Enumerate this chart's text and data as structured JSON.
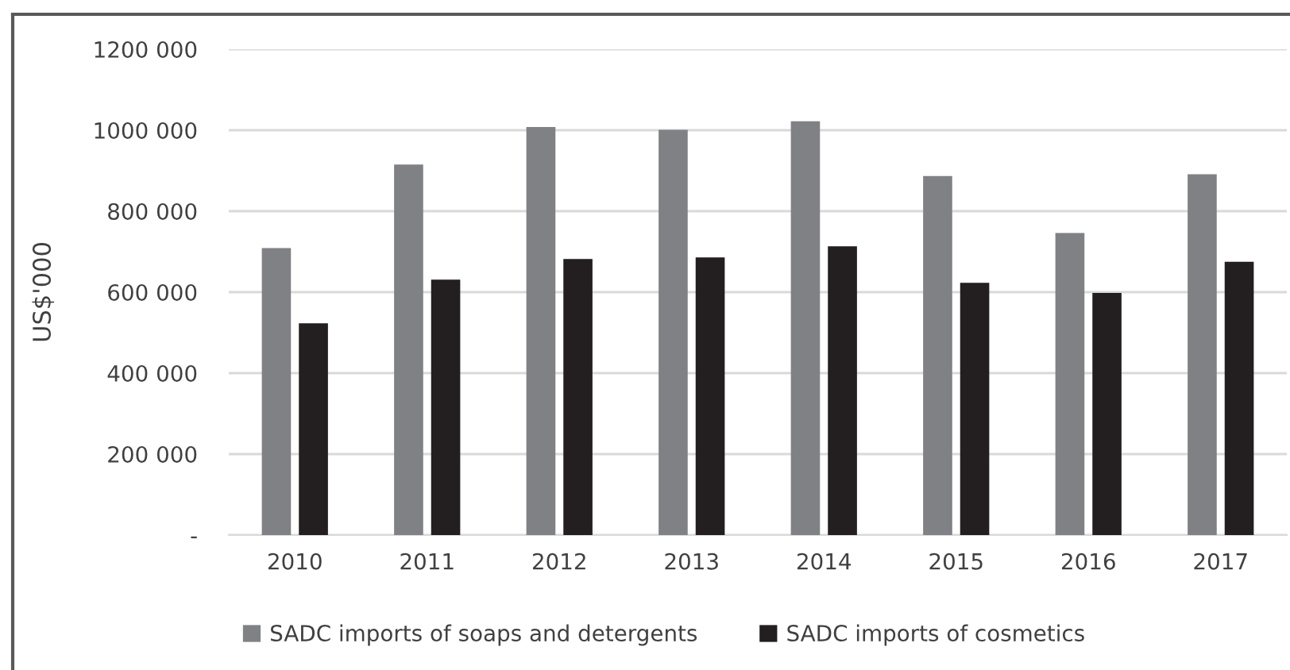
{
  "chart_data": {
    "type": "bar",
    "ylabel": "US$'000",
    "categories": [
      "2010",
      "2011",
      "2012",
      "2013",
      "2014",
      "2015",
      "2016",
      "2017"
    ],
    "series": [
      {
        "name": "SADC imports of soaps and detergents",
        "color": "#808185",
        "values": [
          709000,
          915000,
          1008000,
          1001000,
          1022000,
          887000,
          746000,
          891000
        ]
      },
      {
        "name": "SADC imports of cosmetics",
        "color": "#231f20",
        "values": [
          523000,
          631000,
          682000,
          686000,
          713000,
          623000,
          598000,
          675000
        ]
      }
    ],
    "ylim": [
      0,
      1200000
    ],
    "yticks": [
      {
        "value": 0,
        "label": "-"
      },
      {
        "value": 200000,
        "label": "200 000"
      },
      {
        "value": 400000,
        "label": "400 000"
      },
      {
        "value": 600000,
        "label": "600 000"
      },
      {
        "value": 800000,
        "label": "800 000"
      },
      {
        "value": 1000000,
        "label": "1000 000"
      },
      {
        "value": 1200000,
        "label": "1200 000"
      }
    ],
    "grid": "y",
    "legend": "bottom"
  }
}
